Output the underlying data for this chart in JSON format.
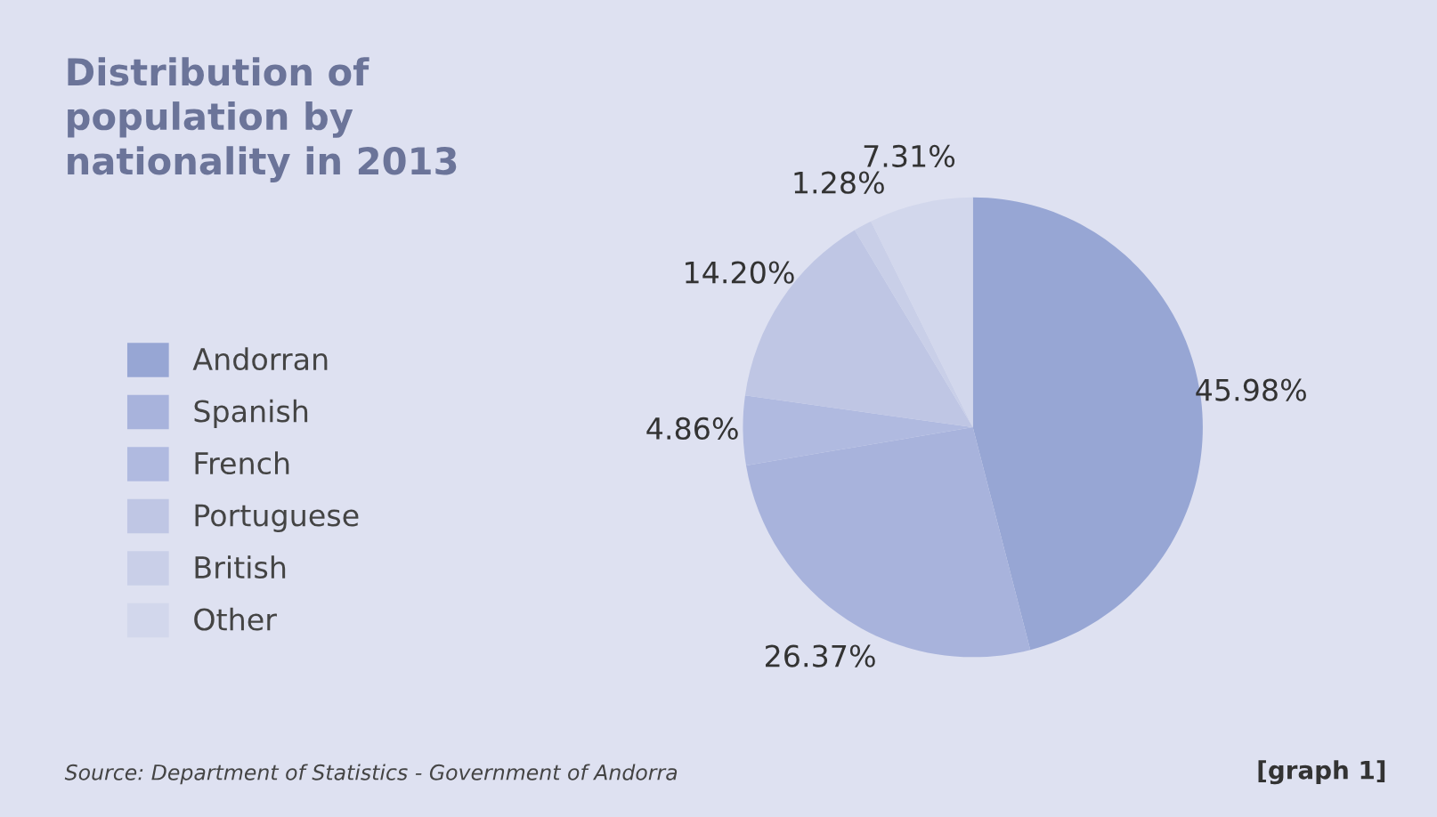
{
  "chart_data": {
    "type": "pie",
    "title": "Distribution of\npopulation by\nnationality in 2013",
    "categories": [
      "Andorran",
      "Spanish",
      "French",
      "Portuguese",
      "British",
      "Other"
    ],
    "values": [
      45.98,
      26.37,
      4.86,
      14.2,
      1.28,
      7.31
    ],
    "value_labels": [
      "45.98%",
      "26.37%",
      "4.86%",
      "14.20%",
      "1.28%",
      "7.31%"
    ],
    "colors": [
      "#97a6d4",
      "#a8b3dc",
      "#b0bae0",
      "#bfc6e4",
      "#c9cfe8",
      "#d2d7ec"
    ],
    "legend": "left",
    "annotations": [
      "Source: Department of Statistics - Government of Andorra",
      "[graph 1]"
    ]
  }
}
